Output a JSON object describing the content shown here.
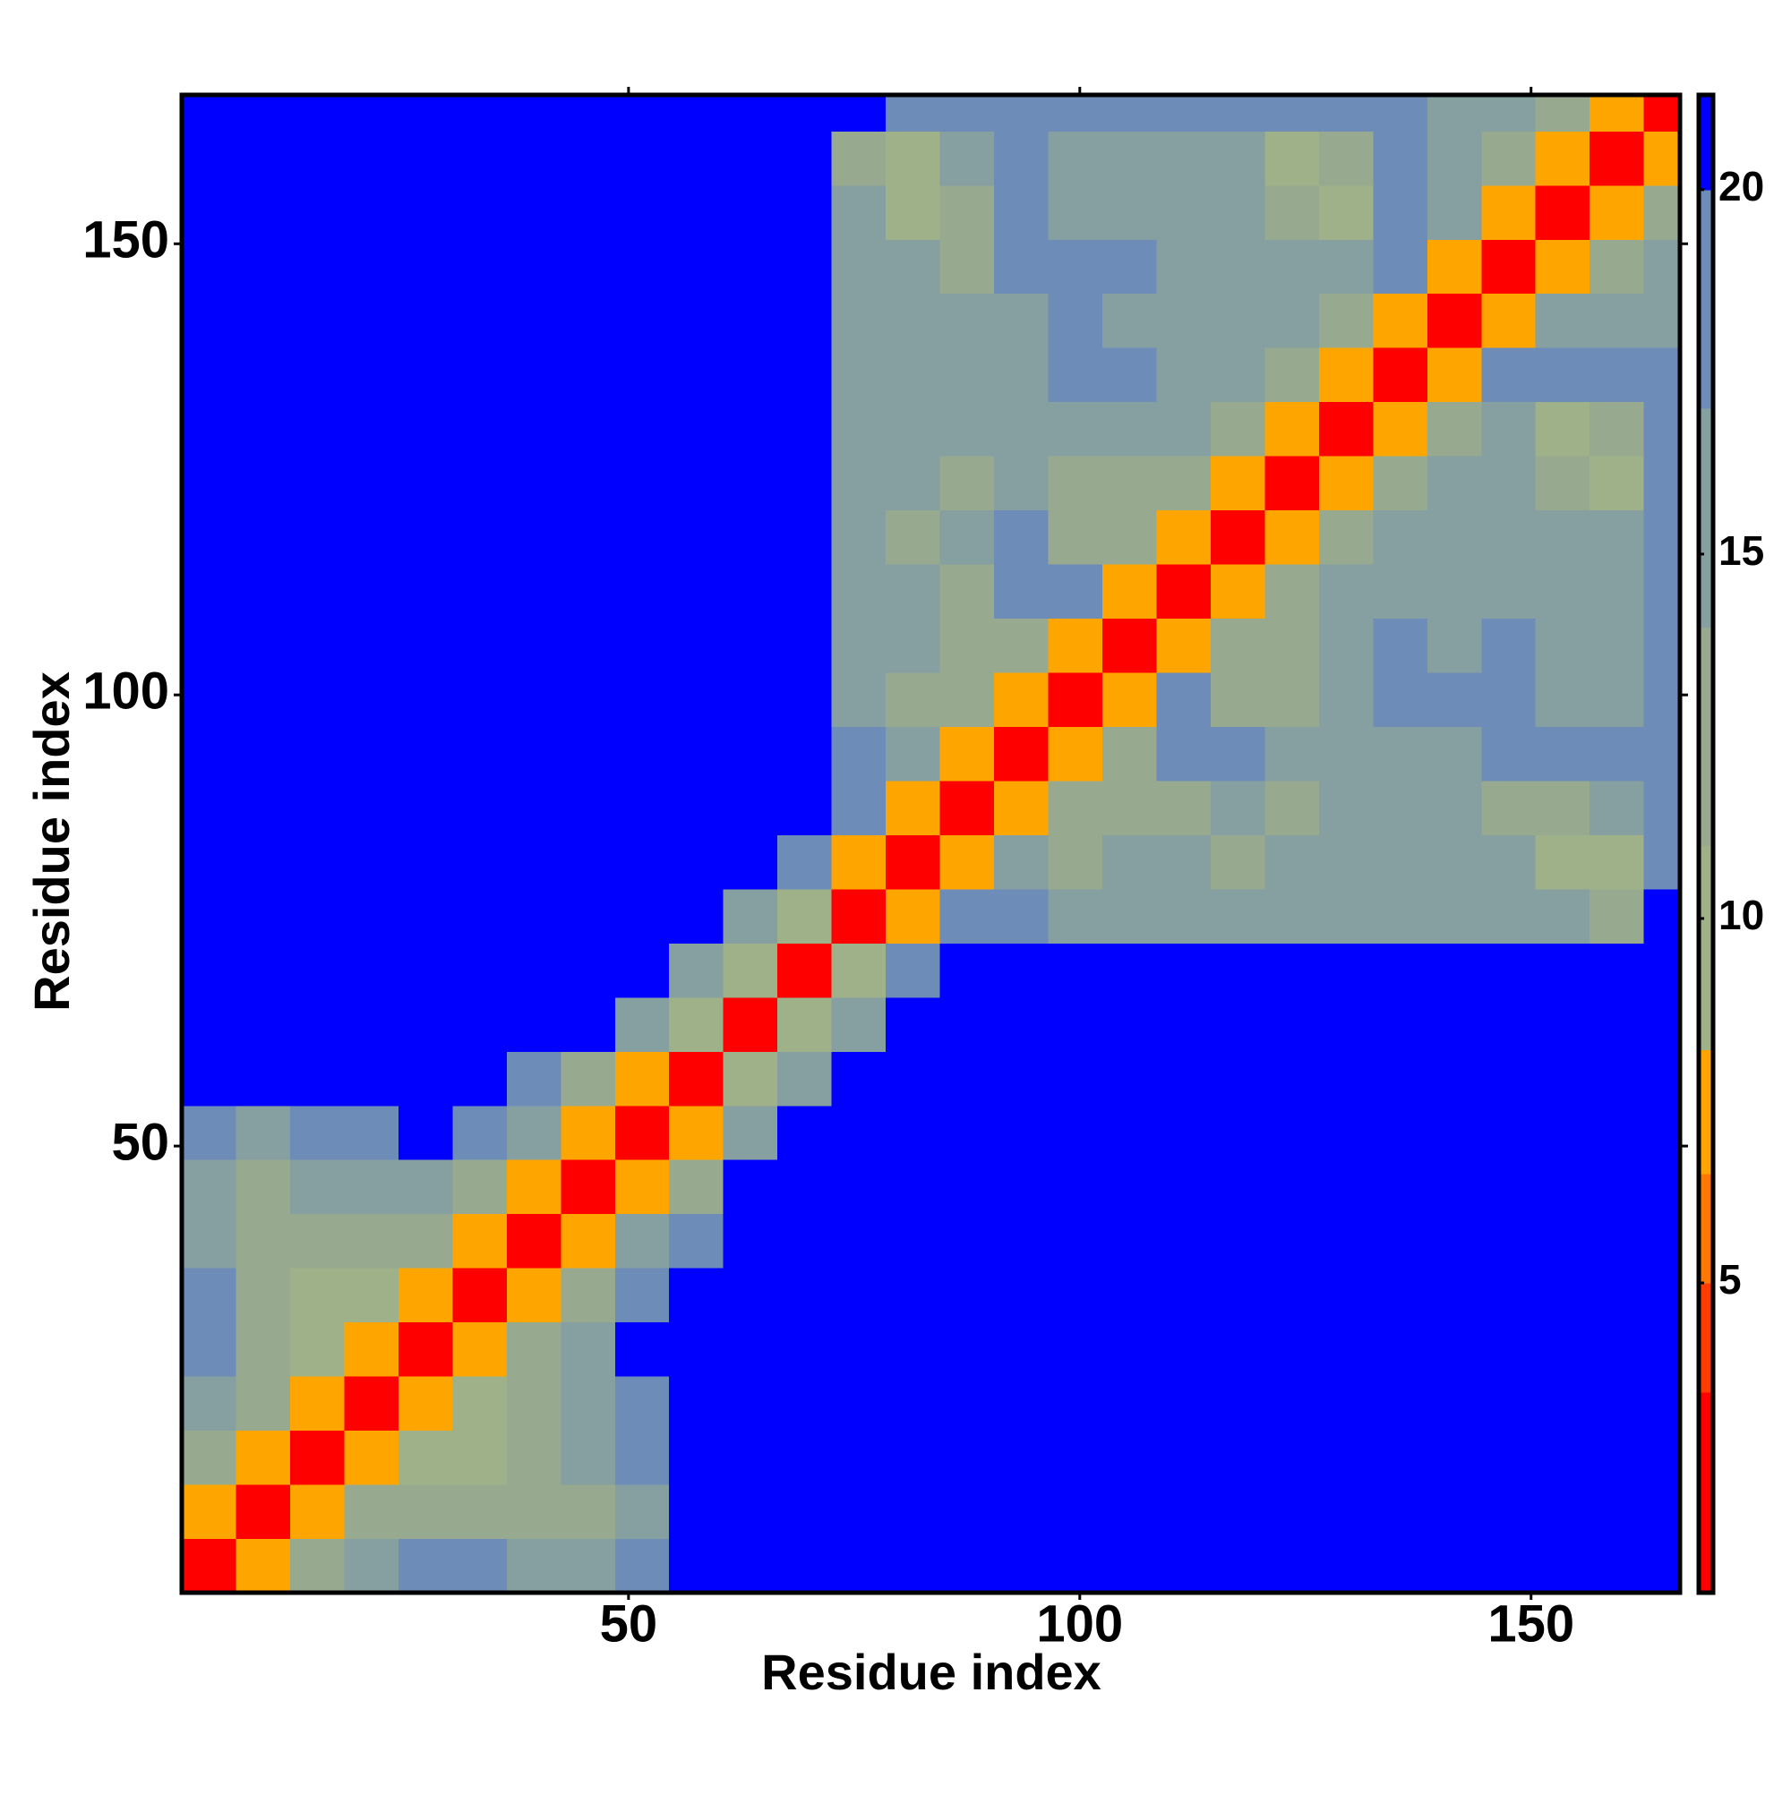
{
  "chart_data": {
    "type": "heatmap",
    "xlabel": "Residue index",
    "ylabel": "Residue index",
    "xlim": [
      0.5,
      166.5
    ],
    "ylim": [
      0.5,
      166.5
    ],
    "xticks": [
      50,
      100,
      150
    ],
    "yticks": [
      50,
      100,
      150
    ],
    "xbins": [
      0.5,
      6.5,
      12.5,
      18.5,
      24.5,
      30.5,
      36.5,
      42.5,
      48.5,
      54.5,
      60.5,
      66.5,
      72.5,
      78.5,
      84.5,
      90.5,
      96.5,
      102.5,
      108.5,
      114.5,
      120.5,
      126.5,
      132.5,
      138.5,
      144.5,
      150.5,
      156.5,
      162.5,
      166.5
    ],
    "ybins": [
      0.5,
      6.5,
      12.5,
      18.5,
      24.5,
      30.5,
      36.5,
      42.5,
      48.5,
      54.5,
      60.5,
      66.5,
      72.5,
      78.5,
      84.5,
      90.5,
      96.5,
      102.5,
      108.5,
      114.5,
      120.5,
      126.5,
      132.5,
      138.5,
      144.5,
      150.5,
      156.5,
      162.5,
      166.5
    ],
    "z": [
      [
        3,
        7,
        11,
        15,
        17,
        17,
        16,
        15,
        17,
        21,
        21,
        21,
        21,
        21,
        21,
        21,
        21,
        21,
        21,
        21,
        21,
        21,
        21,
        21,
        21,
        21,
        21,
        21
      ],
      [
        7,
        3,
        7,
        11,
        12,
        11,
        12,
        13,
        15,
        21,
        21,
        21,
        21,
        21,
        21,
        21,
        21,
        21,
        21,
        21,
        21,
        21,
        21,
        21,
        21,
        21,
        21,
        21
      ],
      [
        11,
        7,
        3,
        7,
        10,
        10,
        11,
        14,
        17,
        21,
        21,
        21,
        21,
        21,
        21,
        21,
        21,
        21,
        21,
        21,
        21,
        21,
        21,
        21,
        21,
        21,
        21,
        21
      ],
      [
        15,
        11,
        7,
        3,
        7,
        10,
        12,
        14,
        18,
        21,
        21,
        21,
        21,
        21,
        21,
        21,
        21,
        21,
        21,
        21,
        21,
        21,
        21,
        21,
        21,
        21,
        21,
        21
      ],
      [
        17,
        12,
        10,
        7,
        3,
        7,
        11,
        15,
        21,
        21,
        21,
        21,
        21,
        21,
        21,
        21,
        21,
        21,
        21,
        21,
        21,
        21,
        21,
        21,
        21,
        21,
        21,
        21
      ],
      [
        17,
        11,
        10,
        10,
        7,
        3,
        7,
        11,
        19,
        21,
        21,
        21,
        21,
        21,
        21,
        21,
        21,
        21,
        21,
        21,
        21,
        21,
        21,
        21,
        21,
        21,
        21,
        21
      ],
      [
        16,
        12,
        11,
        12,
        11,
        7,
        3,
        7,
        14,
        19,
        21,
        21,
        21,
        21,
        21,
        21,
        21,
        21,
        21,
        21,
        21,
        21,
        21,
        21,
        21,
        21,
        21,
        21
      ],
      [
        15,
        13,
        14,
        14,
        15,
        11,
        7,
        3,
        8,
        13,
        21,
        21,
        21,
        21,
        21,
        21,
        21,
        21,
        21,
        21,
        21,
        21,
        21,
        21,
        21,
        21,
        21,
        21
      ],
      [
        17,
        15,
        17,
        18,
        21,
        19,
        14,
        8,
        3,
        8,
        15,
        21,
        21,
        21,
        21,
        21,
        21,
        21,
        21,
        21,
        21,
        21,
        21,
        21,
        21,
        21,
        21,
        21
      ],
      [
        21,
        21,
        21,
        21,
        21,
        21,
        19,
        13,
        8,
        3,
        9,
        16,
        21,
        21,
        21,
        21,
        21,
        21,
        21,
        21,
        21,
        21,
        21,
        21,
        21,
        21,
        21,
        21
      ],
      [
        21,
        21,
        21,
        21,
        21,
        21,
        21,
        21,
        15,
        9,
        3,
        9,
        16,
        21,
        21,
        21,
        21,
        21,
        21,
        21,
        21,
        21,
        21,
        21,
        21,
        21,
        21,
        21
      ],
      [
        21,
        21,
        21,
        21,
        21,
        21,
        21,
        21,
        21,
        16,
        9,
        3,
        9,
        17,
        21,
        21,
        21,
        21,
        21,
        21,
        21,
        21,
        21,
        21,
        21,
        21,
        21,
        21
      ],
      [
        21,
        21,
        21,
        21,
        21,
        21,
        21,
        21,
        21,
        21,
        16,
        9,
        3,
        8,
        19,
        18,
        16,
        16,
        15,
        15,
        16,
        16,
        15,
        15,
        16,
        15,
        13,
        20
      ],
      [
        21,
        21,
        21,
        21,
        21,
        21,
        21,
        21,
        21,
        21,
        21,
        17,
        8,
        3,
        8,
        14,
        13,
        14,
        14,
        13,
        14,
        15,
        14,
        15,
        14,
        10,
        9,
        17
      ],
      [
        21,
        21,
        21,
        21,
        21,
        21,
        21,
        21,
        21,
        21,
        21,
        21,
        19,
        8,
        3,
        8,
        12,
        11,
        11,
        14,
        13,
        14,
        15,
        14,
        13,
        11,
        14,
        18
      ],
      [
        21,
        21,
        21,
        21,
        21,
        21,
        21,
        21,
        21,
        21,
        21,
        21,
        18,
        14,
        8,
        3,
        8,
        12,
        19,
        19,
        15,
        14,
        14,
        15,
        17,
        17,
        17,
        17
      ],
      [
        21,
        21,
        21,
        21,
        21,
        21,
        21,
        21,
        21,
        21,
        21,
        21,
        16,
        13,
        12,
        8,
        3,
        8,
        19,
        11,
        12,
        14,
        17,
        17,
        17,
        16,
        16,
        17
      ],
      [
        21,
        21,
        21,
        21,
        21,
        21,
        21,
        21,
        21,
        21,
        21,
        21,
        16,
        14,
        11,
        12,
        8,
        3,
        8,
        11,
        11,
        15,
        17,
        16,
        17,
        16,
        15,
        17
      ],
      [
        21,
        21,
        21,
        21,
        21,
        21,
        21,
        21,
        21,
        21,
        21,
        21,
        15,
        14,
        11,
        19,
        19,
        8,
        3,
        8,
        13,
        16,
        16,
        15,
        15,
        15,
        16,
        17
      ],
      [
        21,
        21,
        21,
        21,
        21,
        21,
        21,
        21,
        21,
        21,
        21,
        21,
        15,
        13,
        14,
        19,
        11,
        11,
        8,
        3,
        8,
        11,
        14,
        14,
        15,
        14,
        15,
        17
      ],
      [
        21,
        21,
        21,
        21,
        21,
        21,
        21,
        21,
        21,
        21,
        21,
        21,
        16,
        14,
        13,
        15,
        12,
        11,
        13,
        8,
        3,
        8,
        12,
        14,
        14,
        12,
        9,
        17
      ],
      [
        21,
        21,
        21,
        21,
        21,
        21,
        21,
        21,
        21,
        21,
        21,
        21,
        16,
        15,
        14,
        14,
        14,
        15,
        16,
        11,
        8,
        3,
        8,
        12,
        14,
        9,
        12,
        17
      ],
      [
        21,
        21,
        21,
        21,
        21,
        21,
        21,
        21,
        21,
        21,
        21,
        21,
        15,
        14,
        15,
        14,
        17,
        17,
        16,
        14,
        12,
        8,
        3,
        8,
        18,
        17,
        17,
        17
      ],
      [
        21,
        21,
        21,
        21,
        21,
        21,
        21,
        21,
        21,
        21,
        21,
        21,
        15,
        15,
        14,
        15,
        17,
        16,
        15,
        14,
        14,
        12,
        8,
        3,
        8,
        16,
        15,
        16
      ],
      [
        21,
        21,
        21,
        21,
        21,
        21,
        21,
        21,
        21,
        21,
        21,
        21,
        16,
        14,
        13,
        17,
        17,
        17,
        15,
        15,
        14,
        14,
        18,
        8,
        3,
        8,
        11,
        14
      ],
      [
        21,
        21,
        21,
        21,
        21,
        21,
        21,
        21,
        21,
        21,
        21,
        21,
        15,
        10,
        11,
        17,
        16,
        16,
        15,
        14,
        12,
        9,
        17,
        16,
        8,
        3,
        8,
        11
      ],
      [
        21,
        21,
        21,
        21,
        21,
        21,
        21,
        21,
        21,
        21,
        21,
        21,
        13,
        9,
        14,
        17,
        16,
        15,
        16,
        15,
        9,
        12,
        17,
        15,
        11,
        8,
        3,
        7
      ],
      [
        21,
        21,
        21,
        21,
        21,
        21,
        21,
        21,
        21,
        21,
        21,
        21,
        20,
        17,
        18,
        17,
        17,
        17,
        17,
        17,
        17,
        17,
        17,
        16,
        14,
        11,
        7,
        3
      ]
    ],
    "colorbar": {
      "levels": [
        0.75,
        3.5,
        5,
        6.5,
        8.2,
        11,
        14,
        17,
        20,
        21.3
      ],
      "colors": [
        "#ff0000",
        "#ff3c00",
        "#ff7800",
        "#ffa500",
        "#9fb188",
        "#97aa90",
        "#869fa0",
        "#6d8cb8",
        "#0000ff"
      ],
      "ticks": [
        5,
        10,
        15,
        20
      ]
    }
  }
}
